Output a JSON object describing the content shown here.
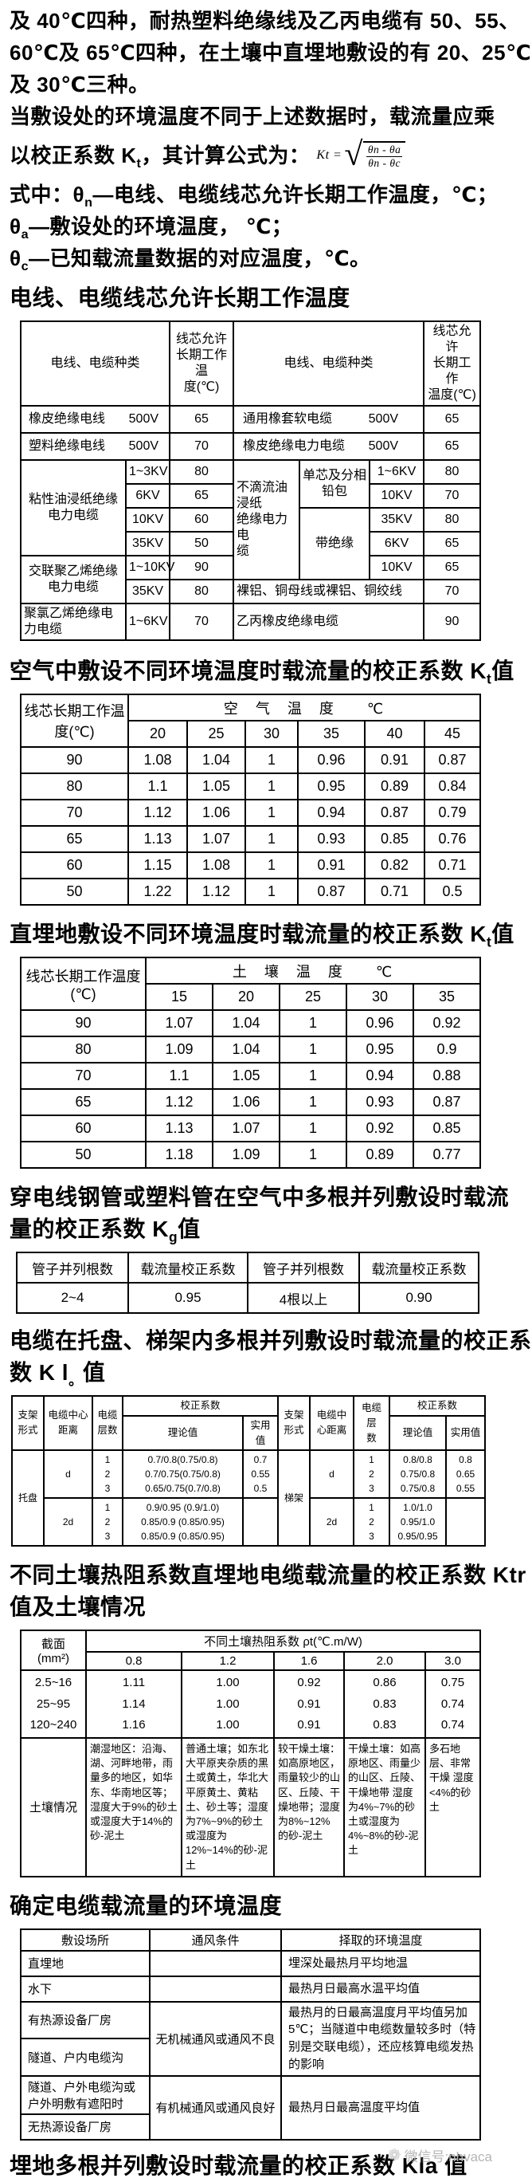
{
  "intro": {
    "l1": "及 40℃四种，耐热塑料绝缘线及乙丙电缆有 50、55、",
    "l2": "60℃及 65℃四种，在土壤中直埋地敷设的有 20、25℃",
    "l3": "及 30℃三种。",
    "l4": "当敷设处的环境温度不同于上述数据时，载流量应乘",
    "l5_pre": "以校正系数 K",
    "l5_sub": "t",
    "l5_post": "，其计算公式为："
  },
  "formula": {
    "lhs": "Kt =",
    "radical": "√",
    "num": "θn - θa",
    "den": "θn - θc"
  },
  "defs": {
    "d1_pre": "式中：θ",
    "d1_sub": "n",
    "d1_post": "—电线、电缆线芯允许长期工作温度，℃；",
    "d2_pre": "θ",
    "d2_sub": "a",
    "d2_post": "—敷设处的环境温度， ℃；",
    "d3_pre": "θ",
    "d3_sub": "c",
    "d3_post": "—已知载流量数据的对应温度，℃。"
  },
  "t1": {
    "title": "电线、电缆线芯允许长期工作温度",
    "h_kind_l": "电线、电缆种类",
    "h_temp_l": "线芯允许\n长期工作温\n度(℃)",
    "h_kind_r": "电线、电缆种类",
    "h_temp_r": "线芯允许\n长期工作\n温度(℃)",
    "l_r1": [
      "橡皮绝缘电线",
      "500V",
      "65"
    ],
    "l_r2": [
      "塑料绝缘电线",
      "500V",
      "70"
    ],
    "l_g1_name": "粘性油浸纸绝缘电力电缆",
    "l_g1": [
      [
        "1~3KV",
        "80"
      ],
      [
        "6KV",
        "65"
      ],
      [
        "10KV",
        "60"
      ],
      [
        "35KV",
        "50"
      ]
    ],
    "l_g2_name": "交联聚乙烯绝缘电力电缆",
    "l_g2": [
      [
        "1~10KV",
        "90"
      ],
      [
        "35KV",
        "80"
      ]
    ],
    "l_r9": [
      "聚氯乙烯绝缘电力电缆",
      "1~6KV",
      "70"
    ],
    "r_r1": [
      "通用橡套软电缆",
      "500V",
      "65"
    ],
    "r_r2": [
      "橡皮绝缘电力电缆",
      "500V",
      "65"
    ],
    "r_g1_name": "不滴流油浸纸\n绝缘电力电\n缆",
    "r_g1a_name": "单芯及分相\n铅包",
    "r_g1a": [
      [
        "1~6KV",
        "80"
      ],
      [
        "10KV",
        "70"
      ]
    ],
    "r_g1b_name": "带绝缘",
    "r_g1b": [
      [
        "35KV",
        "80"
      ],
      [
        "6KV",
        "65"
      ],
      [
        "10KV",
        "65"
      ]
    ],
    "r_r8": [
      "裸铝、铜母线或裸铝、铜绞线",
      "70"
    ],
    "r_r9": [
      "乙丙橡皮绝缘电缆",
      "90"
    ]
  },
  "t2": {
    "title_pre": "空气中敷设不同环境温度时载流量的校正系数 K",
    "title_sub": "t",
    "title_post": "值",
    "corner": "线芯长期工作温\n度(℃)",
    "group": "空　气　温　度　　℃",
    "cols": [
      "20",
      "25",
      "30",
      "35",
      "40",
      "45"
    ],
    "rows": [
      [
        "90",
        "1.08",
        "1.04",
        "1",
        "0.96",
        "0.91",
        "0.87"
      ],
      [
        "80",
        "1.1",
        "1.05",
        "1",
        "0.95",
        "0.89",
        "0.84"
      ],
      [
        "70",
        "1.12",
        "1.06",
        "1",
        "0.94",
        "0.87",
        "0.79"
      ],
      [
        "65",
        "1.13",
        "1.07",
        "1",
        "0.93",
        "0.85",
        "0.76"
      ],
      [
        "60",
        "1.15",
        "1.08",
        "1",
        "0.91",
        "0.82",
        "0.71"
      ],
      [
        "50",
        "1.22",
        "1.12",
        "1",
        "0.87",
        "0.71",
        "0.5"
      ]
    ]
  },
  "t3": {
    "title_pre": "直埋地敷设不同环境温度时载流量的校正系数 K",
    "title_sub": "t",
    "title_post": "值",
    "corner": "线芯长期工作温度\n(℃)",
    "group": "土　壤　温　度　　℃",
    "cols": [
      "15",
      "20",
      "25",
      "30",
      "35"
    ],
    "rows": [
      [
        "90",
        "1.07",
        "1.04",
        "1",
        "0.96",
        "0.92"
      ],
      [
        "80",
        "1.09",
        "1.04",
        "1",
        "0.95",
        "0.9"
      ],
      [
        "70",
        "1.1",
        "1.05",
        "1",
        "0.94",
        "0.88"
      ],
      [
        "65",
        "1.12",
        "1.06",
        "1",
        "0.93",
        "0.87"
      ],
      [
        "60",
        "1.13",
        "1.07",
        "1",
        "0.92",
        "0.85"
      ],
      [
        "50",
        "1.18",
        "1.09",
        "1",
        "0.89",
        "0.77"
      ]
    ]
  },
  "t4": {
    "title_l1": "穿电线钢管或塑料管在空气中多根并列敷设时载流",
    "title_l2_pre": "量的校正系数 K",
    "title_l2_sub": "g",
    "title_l2_post": "值",
    "headers": [
      "管子并列根数",
      "载流量校正系数",
      "管子并列根数",
      "载流量校正系数"
    ],
    "row": [
      "2~4",
      "0.95",
      "4根以上",
      "0.90"
    ]
  },
  "t5": {
    "title_l1": "电缆在托盘、梯架内多根并列敷设时载流量的校正系",
    "title_l2_pre": "数 K l",
    "title_l2_sub": "。",
    "title_l2_post": "值",
    "h_form": "支架\n形式",
    "h_dist": "电缆中心\n距离",
    "h_layers": "电缆\n层数",
    "h_corr": "校正系数",
    "h_theory": "理论值",
    "h_practical": "实用值",
    "h_form_r": "支架\n形式",
    "h_dist_r": "电缆中\n心距离",
    "h_layers_r": "电缆层\n数",
    "h_corr_r": "校正系数",
    "h_theory_r": "理论值",
    "h_practical_r": "实用值",
    "l_form": "托盘",
    "l_g1_dist": "d",
    "l_g1_layers": "1\n2\n3",
    "l_g1_theory": "0.7/0.8(0.75/0.8)\n0.7/0.75(0.75/0.8)\n0.65/0.75(0.7/0.8)",
    "l_g1_practical": "0.7\n0.55\n0.5",
    "l_g2_dist": "2d",
    "l_g2_layers": "1\n2\n3",
    "l_g2_theory": "0.9/0.95 (0.9/1.0)\n0.85/0.9 (0.85/0.95)\n0.85/0.9 (0.85/0.95)",
    "l_g2_practical": "",
    "r_form": "梯架",
    "r_g1_dist": "d",
    "r_g1_layers": "1\n2\n3",
    "r_g1_theory": "0.8/0.8\n0.75/0.8\n0.75/0.8",
    "r_g1_practical": "0.8\n0.65\n0.55",
    "r_g2_dist": "2d",
    "r_g2_layers": "1\n2\n3",
    "r_g2_theory": "1.0/1.0\n0.95/1.0\n0.95/0.95",
    "r_g2_practical": ""
  },
  "t6": {
    "title_l1": "不同土壤热阻系数直埋地电缆载流量的校正系数 Ktr",
    "title_l2": "值及土壤情况",
    "corner": "截面\n(mm²)",
    "group": "不同土壤热阻系数 ρt(℃.m/W)",
    "cols": [
      "0.8",
      "1.2",
      "1.6",
      "2.0",
      "3.0"
    ],
    "sizes": "2.5~16\n25~95\n120~240",
    "values": [
      "1.11\n1.14\n1.16",
      "1.00\n1.00\n1.00",
      "0.92\n0.91\n0.91",
      "0.86\n0.83\n0.83",
      "0.75\n0.74\n0.74"
    ],
    "soil_label": "土壤情况",
    "soils": [
      "潮湿地区：沿海、湖、河畔地带，雨量多的地区，如华东、华南地区等；湿度大于9%的砂土或湿度大于14%的砂-泥土",
      "普通土壤；如东北大平原夹杂质的黑土或黄土，华北大平原黄土、黄粘土、砂土等；湿度为7%~9%的砂土或湿度为12%~14%的砂-泥土",
      "较干燥土壤：如高原地区，雨量较少的山区、丘陵、干燥地带；湿度为8%~12%的砂-泥土",
      "干燥土壤：如高原地区、雨量少的山区、丘陵、干燥地带 湿度为4%~7%的砂土或湿度为4%~8%的砂-泥土",
      "多石地层、非常干燥 湿度<4%的砂土"
    ]
  },
  "t7": {
    "title": "确定电缆载流量的环境温度",
    "headers": [
      "敷设场所",
      "通风条件",
      "择取的环境温度"
    ],
    "r1_place": "直埋地",
    "r1_vent": "",
    "r1_temp": "埋深处最热月平均地温",
    "r2_place": "水下",
    "r2_vent": "",
    "r2_temp": "最热月日最高水温平均值",
    "r3_place": "有热源设备厂房",
    "r34_vent": "无机械通风或通风不良",
    "r34_temp": "最热月的日最高温度月平均值另加5℃；当隧道中电缆数量较多时（特别是交联电缆），还应核算电缆发热的影响",
    "r4_place": "隧道、户内电缆沟",
    "r5_place": "隧道、户外电缆沟或户外明敷有遮阳时",
    "r56_vent": "有机械通风或通风良好",
    "r56_temp": "最热月日最高温度平均值",
    "r6_place": "无热源设备厂房"
  },
  "footer": {
    "title": "埋地多根并列敷设时载流量的校正系数 Kla 值"
  },
  "watermark": {
    "icon": "❁",
    "label": "微信号:nhvaca"
  }
}
